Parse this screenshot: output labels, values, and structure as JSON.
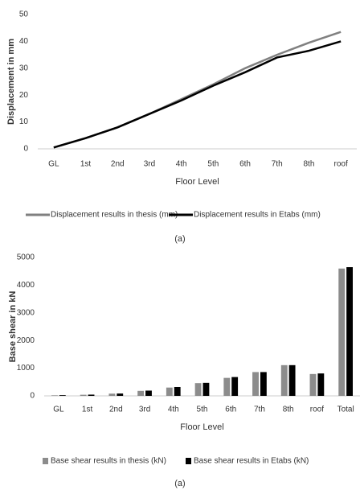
{
  "chart_data": [
    {
      "type": "line",
      "y_label": "Displacement in mm",
      "x_label": "Floor Level",
      "caption": "(a)",
      "categories": [
        "GL",
        "1st",
        "2nd",
        "3rd",
        "4th",
        "5th",
        "6th",
        "7th",
        "8th",
        "roof"
      ],
      "series": [
        {
          "name": "Displacement results in thesis (mm)",
          "color": "#808080",
          "values": [
            0.5,
            4,
            8,
            13,
            18.5,
            24,
            30,
            35,
            39.5,
            43.5
          ]
        },
        {
          "name": "Displacement results in Etabs (mm)",
          "color": "#000000",
          "values": [
            0.5,
            4,
            8,
            13,
            18,
            23.5,
            28.5,
            34,
            36.5,
            40
          ]
        }
      ],
      "ylim": [
        0,
        50
      ],
      "yticks": [
        0,
        10,
        20,
        30,
        40,
        50
      ],
      "grid": false,
      "legend": "bottom"
    },
    {
      "type": "bar",
      "y_label": "Base shear in kN",
      "x_label": "Floor Level",
      "caption": "(a)",
      "categories": [
        "GL",
        "1st",
        "2nd",
        "3rd",
        "4th",
        "5th",
        "6th",
        "7th",
        "8th",
        "roof",
        "Total"
      ],
      "series": [
        {
          "name": "Base shear results in thesis (kN)",
          "color": "#8c8c8c",
          "values": [
            20,
            40,
            80,
            180,
            300,
            460,
            650,
            860,
            1110,
            790,
            4600
          ]
        },
        {
          "name": "Base shear results in Etabs (kN)",
          "color": "#000000",
          "values": [
            25,
            45,
            85,
            190,
            320,
            470,
            680,
            860,
            1110,
            810,
            4650
          ]
        }
      ],
      "ylim": [
        0,
        5000
      ],
      "yticks": [
        0,
        1000,
        2000,
        3000,
        4000,
        5000
      ],
      "grid": false,
      "legend": "bottom"
    }
  ]
}
